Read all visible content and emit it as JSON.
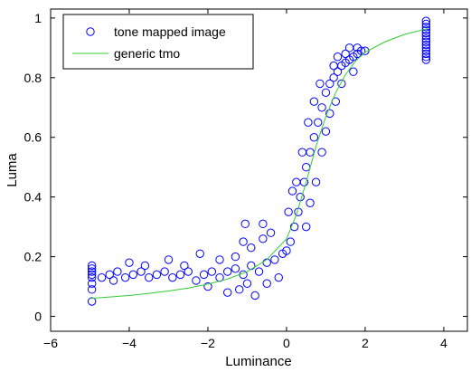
{
  "chart_data": {
    "type": "scatter",
    "title": "",
    "xlabel": "Luminance",
    "ylabel": "Luma",
    "xlim": [
      -6,
      4.6
    ],
    "ylim": [
      -0.05,
      1.03
    ],
    "xticks": [
      -6,
      -4,
      -2,
      0,
      2,
      4
    ],
    "yticks": [
      0,
      0.2,
      0.4,
      0.6,
      0.8,
      1
    ],
    "grid": false,
    "legend_position": "top-left",
    "series": [
      {
        "name": "tone mapped image",
        "kind": "scatter",
        "marker": "open-circle",
        "color": "#0000ff",
        "points": [
          [
            -4.95,
            0.05
          ],
          [
            -4.95,
            0.09
          ],
          [
            -4.95,
            0.11
          ],
          [
            -4.95,
            0.13
          ],
          [
            -4.95,
            0.14
          ],
          [
            -4.95,
            0.15
          ],
          [
            -4.95,
            0.16
          ],
          [
            -4.95,
            0.17
          ],
          [
            -4.7,
            0.13
          ],
          [
            -4.5,
            0.14
          ],
          [
            -4.3,
            0.15
          ],
          [
            -4.1,
            0.13
          ],
          [
            -3.9,
            0.14
          ],
          [
            -3.7,
            0.15
          ],
          [
            -3.5,
            0.13
          ],
          [
            -4.0,
            0.18
          ],
          [
            -3.6,
            0.17
          ],
          [
            -4.4,
            0.12
          ],
          [
            -3.3,
            0.14
          ],
          [
            -3.1,
            0.15
          ],
          [
            -2.9,
            0.13
          ],
          [
            -2.7,
            0.14
          ],
          [
            -2.5,
            0.15
          ],
          [
            -2.3,
            0.12
          ],
          [
            -2.1,
            0.14
          ],
          [
            -1.9,
            0.15
          ],
          [
            -1.7,
            0.13
          ],
          [
            -1.5,
            0.15
          ],
          [
            -1.3,
            0.16
          ],
          [
            -1.1,
            0.14
          ],
          [
            -0.9,
            0.17
          ],
          [
            -0.7,
            0.15
          ],
          [
            -0.5,
            0.18
          ],
          [
            -0.3,
            0.19
          ],
          [
            -0.1,
            0.21
          ],
          [
            -2.0,
            0.1
          ],
          [
            -1.5,
            0.08
          ],
          [
            -1.2,
            0.09
          ],
          [
            -0.8,
            0.07
          ],
          [
            -0.5,
            0.11
          ],
          [
            -0.2,
            0.13
          ],
          [
            -1.0,
            0.11
          ],
          [
            -1.7,
            0.19
          ],
          [
            -1.3,
            0.2
          ],
          [
            -1.1,
            0.25
          ],
          [
            -0.9,
            0.23
          ],
          [
            -0.6,
            0.26
          ],
          [
            -0.4,
            0.28
          ],
          [
            -3.0,
            0.19
          ],
          [
            -2.6,
            0.17
          ],
          [
            -2.2,
            0.21
          ],
          [
            -0.6,
            0.31
          ],
          [
            -1.05,
            0.31
          ],
          [
            0.0,
            0.22
          ],
          [
            0.1,
            0.25
          ],
          [
            0.2,
            0.3
          ],
          [
            0.3,
            0.35
          ],
          [
            0.35,
            0.4
          ],
          [
            0.45,
            0.45
          ],
          [
            0.5,
            0.5
          ],
          [
            0.6,
            0.55
          ],
          [
            0.7,
            0.6
          ],
          [
            0.8,
            0.65
          ],
          [
            0.9,
            0.7
          ],
          [
            1.0,
            0.75
          ],
          [
            1.1,
            0.78
          ],
          [
            1.2,
            0.8
          ],
          [
            1.3,
            0.82
          ],
          [
            1.4,
            0.84
          ],
          [
            1.5,
            0.85
          ],
          [
            1.6,
            0.86
          ],
          [
            1.7,
            0.87
          ],
          [
            1.8,
            0.88
          ],
          [
            1.9,
            0.89
          ],
          [
            2.0,
            0.89
          ],
          [
            0.15,
            0.42
          ],
          [
            0.05,
            0.35
          ],
          [
            0.25,
            0.45
          ],
          [
            0.4,
            0.55
          ],
          [
            0.55,
            0.65
          ],
          [
            0.7,
            0.72
          ],
          [
            0.85,
            0.78
          ],
          [
            0.5,
            0.3
          ],
          [
            0.6,
            0.38
          ],
          [
            0.75,
            0.45
          ],
          [
            0.9,
            0.55
          ],
          [
            1.0,
            0.62
          ],
          [
            1.1,
            0.68
          ],
          [
            1.25,
            0.72
          ],
          [
            1.3,
            0.87
          ],
          [
            1.5,
            0.88
          ],
          [
            1.2,
            0.84
          ],
          [
            1.6,
            0.9
          ],
          [
            1.8,
            0.9
          ],
          [
            1.4,
            0.78
          ],
          [
            1.7,
            0.82
          ],
          [
            3.55,
            0.86
          ],
          [
            3.55,
            0.87
          ],
          [
            3.55,
            0.88
          ],
          [
            3.55,
            0.89
          ],
          [
            3.55,
            0.9
          ],
          [
            3.55,
            0.91
          ],
          [
            3.55,
            0.92
          ],
          [
            3.55,
            0.93
          ],
          [
            3.55,
            0.94
          ],
          [
            3.55,
            0.95
          ],
          [
            3.55,
            0.96
          ],
          [
            3.55,
            0.97
          ],
          [
            3.55,
            0.98
          ],
          [
            3.55,
            0.99
          ]
        ]
      },
      {
        "name": "generic tmo",
        "kind": "line",
        "color": "#33cc33",
        "x": [
          -5.0,
          -4.5,
          -4.0,
          -3.5,
          -3.0,
          -2.5,
          -2.0,
          -1.5,
          -1.0,
          -0.5,
          0.0,
          0.25,
          0.5,
          0.75,
          1.0,
          1.25,
          1.5,
          1.75,
          2.0,
          2.5,
          3.0,
          3.6
        ],
        "y": [
          0.06,
          0.065,
          0.07,
          0.077,
          0.085,
          0.095,
          0.108,
          0.125,
          0.15,
          0.19,
          0.26,
          0.34,
          0.45,
          0.57,
          0.67,
          0.75,
          0.81,
          0.855,
          0.885,
          0.92,
          0.945,
          0.965
        ]
      }
    ]
  }
}
